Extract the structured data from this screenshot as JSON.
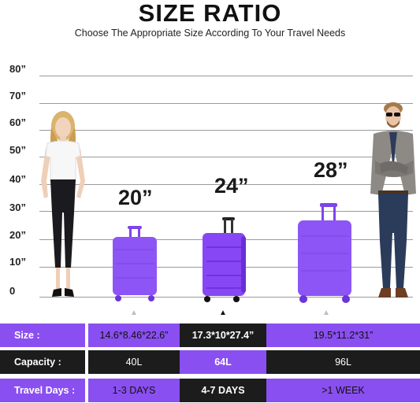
{
  "header": {
    "title": "SIZE RATIO",
    "subtitle": "Choose The Appropriate Size According To Your Travel Needs"
  },
  "scale": {
    "labels": [
      "80”",
      "70”",
      "60”",
      "50”",
      "40”",
      "30”",
      "20”",
      "10”",
      "0"
    ]
  },
  "sizes": {
    "small": "20”",
    "medium": "24”",
    "large": "28”"
  },
  "colors": {
    "purple": "#8a4ff0",
    "dark": "#1c1c1c",
    "suitcase": "#8d55f5",
    "suitcase_dark": "#6b35d8"
  },
  "table": {
    "rows": [
      {
        "label": "Size :",
        "values": [
          "14.6*8.46*22.6”",
          "17.3*10*27.4”",
          "19.5*11.2*31”"
        ]
      },
      {
        "label": "Capacity :",
        "values": [
          "40L",
          "64L",
          "96L"
        ]
      },
      {
        "label": "Travel Days :",
        "values": [
          "1-3 DAYS",
          "4-7 DAYS",
          ">1 WEEK"
        ]
      }
    ]
  }
}
